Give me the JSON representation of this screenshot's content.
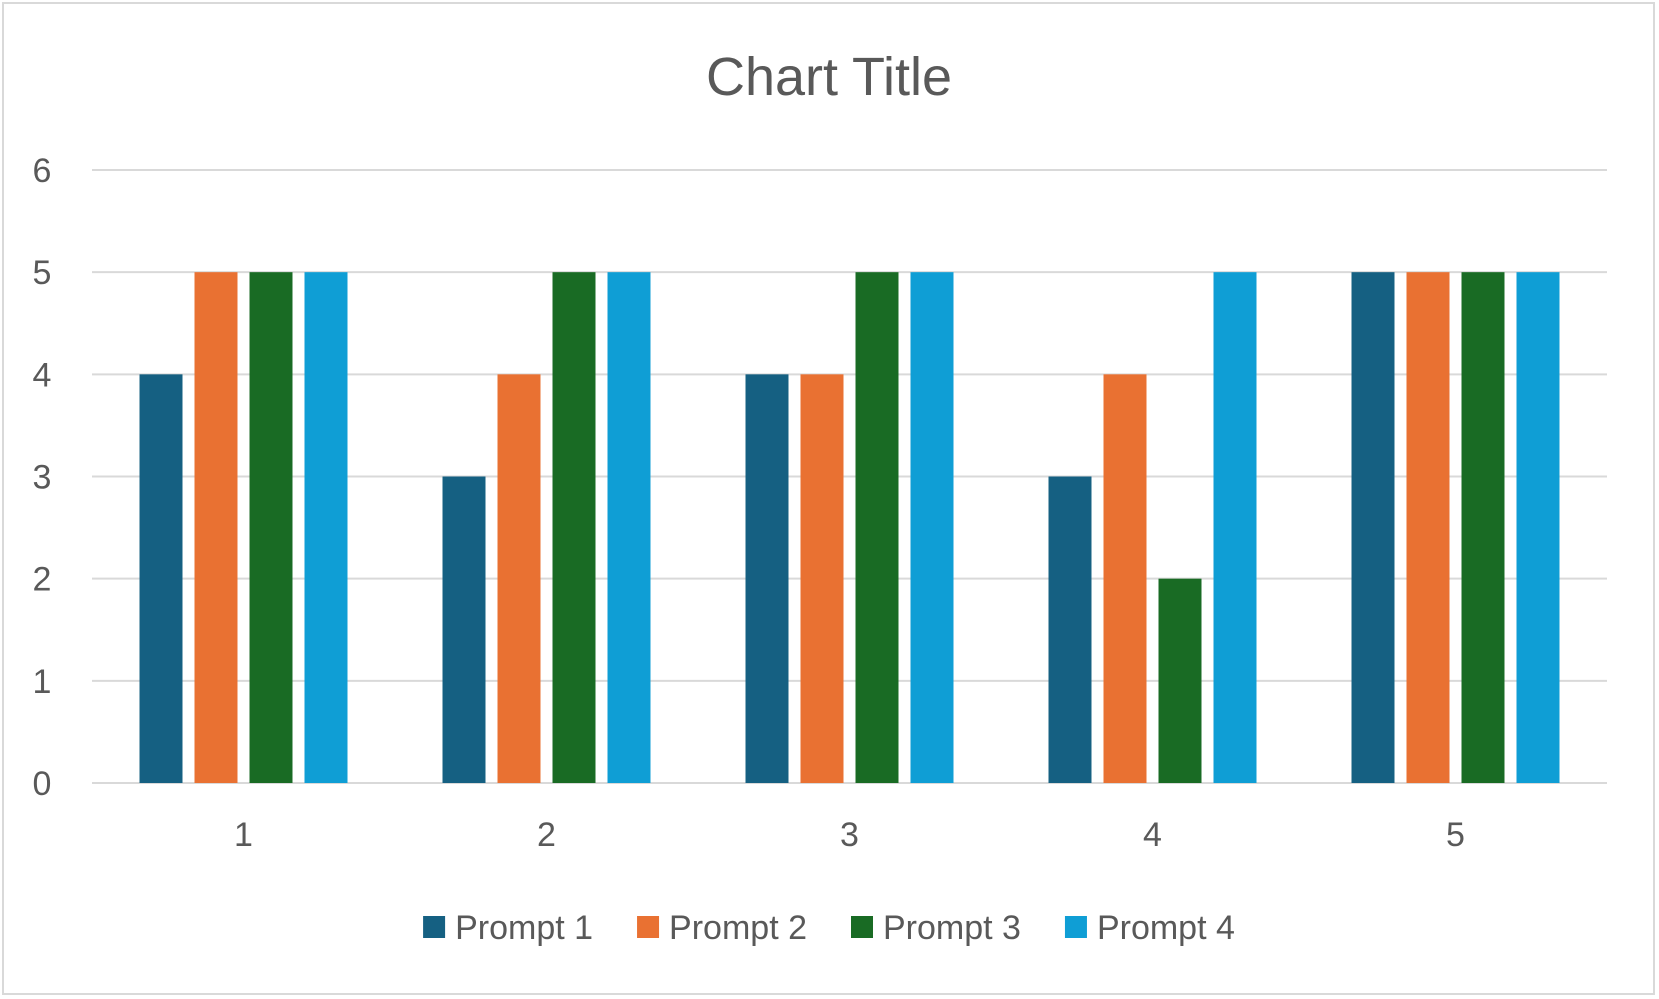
{
  "chart_data": {
    "type": "bar",
    "title": "Chart Title",
    "xlabel": "",
    "ylabel": "",
    "categories": [
      "1",
      "2",
      "3",
      "4",
      "5"
    ],
    "series": [
      {
        "name": "Prompt 1",
        "color": "#156082",
        "values": [
          4,
          3,
          4,
          3,
          5
        ]
      },
      {
        "name": "Prompt 2",
        "color": "#E97132",
        "values": [
          5,
          4,
          4,
          4,
          5
        ]
      },
      {
        "name": "Prompt 3",
        "color": "#196B24",
        "values": [
          5,
          5,
          5,
          2,
          5
        ]
      },
      {
        "name": "Prompt 4",
        "color": "#0F9ED5",
        "values": [
          5,
          5,
          5,
          5,
          5
        ]
      }
    ],
    "ylim": [
      0,
      6
    ],
    "yticks": [
      0,
      1,
      2,
      3,
      4,
      5,
      6
    ],
    "grid": true,
    "legend_position": "bottom"
  }
}
